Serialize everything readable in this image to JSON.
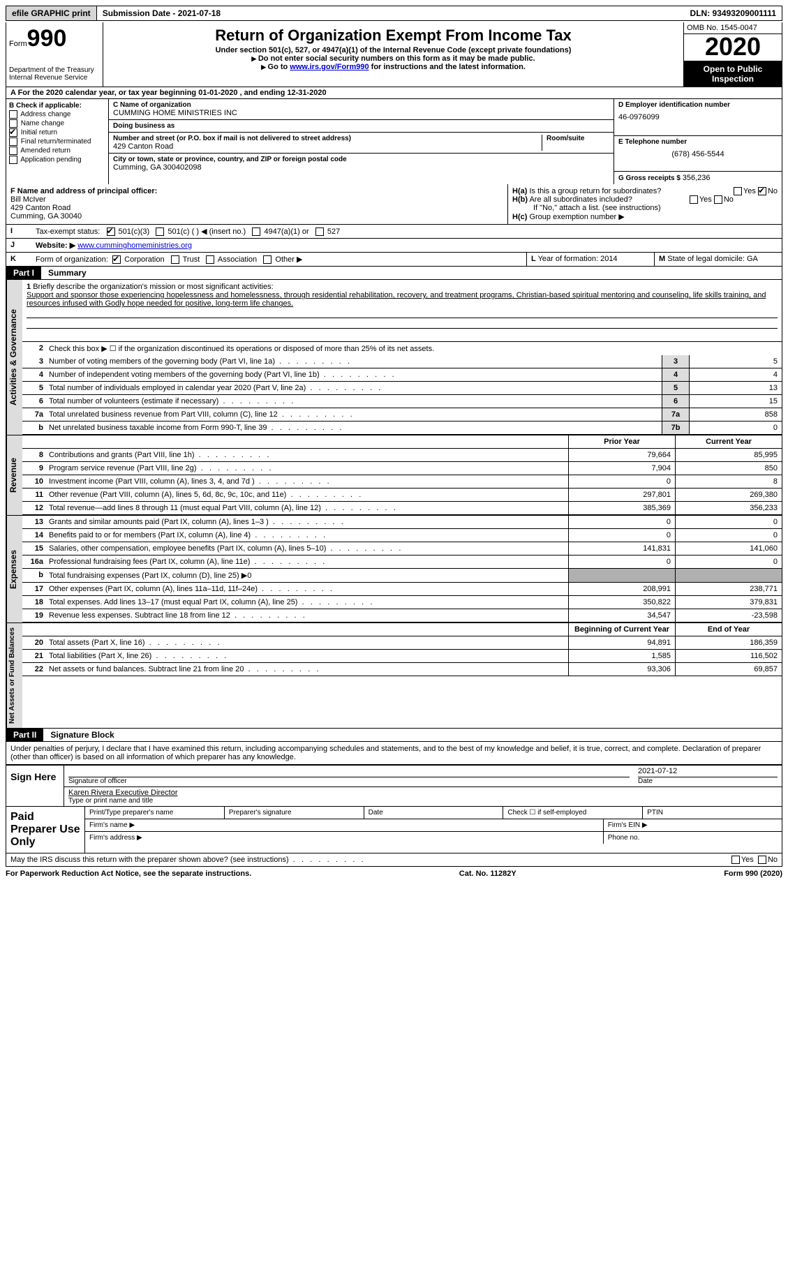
{
  "topbar": {
    "efile_btn": "efile GRAPHIC print",
    "submission_date_label": "Submission Date - ",
    "submission_date": "2021-07-18",
    "dln_label": "DLN: ",
    "dln": "93493209001111"
  },
  "header": {
    "form_label": "Form",
    "form_num": "990",
    "dept": "Department of the Treasury\nInternal Revenue Service",
    "title": "Return of Organization Exempt From Income Tax",
    "sub1": "Under section 501(c), 527, or 4947(a)(1) of the Internal Revenue Code (except private foundations)",
    "sub2": "Do not enter social security numbers on this form as it may be made public.",
    "sub3_pre": "Go to ",
    "sub3_link": "www.irs.gov/Form990",
    "sub3_post": " for instructions and the latest information.",
    "omb": "OMB No. 1545-0047",
    "year": "2020",
    "inspection": "Open to Public Inspection"
  },
  "row_a": {
    "text_pre": "A For the 2020 calendar year, or tax year beginning ",
    "begin": "01-01-2020",
    "mid": "  , and ending ",
    "end": "12-31-2020"
  },
  "col_b": {
    "header": "B Check if applicable:",
    "items": [
      {
        "label": "Address change",
        "checked": false
      },
      {
        "label": "Name change",
        "checked": false
      },
      {
        "label": "Initial return",
        "checked": true
      },
      {
        "label": "Final return/terminated",
        "checked": false
      },
      {
        "label": "Amended return",
        "checked": false
      },
      {
        "label": "Application pending",
        "checked": false
      }
    ]
  },
  "col_c": {
    "name_label": "C Name of organization",
    "name": "CUMMING HOME MINISTRIES INC",
    "dba_label": "Doing business as",
    "dba": "",
    "street_label": "Number and street (or P.O. box if mail is not delivered to street address)",
    "room_label": "Room/suite",
    "street": "429 Canton Road",
    "city_label": "City or town, state or province, country, and ZIP or foreign postal code",
    "city": "Cumming, GA  300402098"
  },
  "col_d": {
    "ein_label": "D Employer identification number",
    "ein": "46-0976099",
    "phone_label": "E Telephone number",
    "phone": "(678) 456-5544",
    "gross_label": "G Gross receipts $ ",
    "gross": "356,236"
  },
  "row_f": {
    "label": "F Name and address of principal officer:",
    "name": "Bill McIver",
    "addr1": "429 Canton Road",
    "addr2": "Cumming, GA  30040"
  },
  "row_h": {
    "ha_label": "H(a)",
    "ha_text": "Is this a group return for subordinates?",
    "ha_yes": "Yes",
    "ha_no": "No",
    "ha_checked": "No",
    "hb_label": "H(b)",
    "hb_text": "Are all subordinates included?",
    "hb_yes": "Yes",
    "hb_no": "No",
    "hb_note": "If \"No,\" attach a list. (see instructions)",
    "hc_label": "H(c)",
    "hc_text": "Group exemption number ▶"
  },
  "row_i": {
    "label": "I",
    "text": "Tax-exempt status:",
    "opts": [
      "501(c)(3)",
      "501(c) ( ) ◀ (insert no.)",
      "4947(a)(1) or",
      "527"
    ],
    "checked_idx": 0
  },
  "row_j": {
    "label": "J",
    "text": "Website: ▶",
    "url": "www.cumminghomeministries.org"
  },
  "row_k": {
    "label": "K",
    "text": "Form of organization:",
    "opts": [
      "Corporation",
      "Trust",
      "Association",
      "Other ▶"
    ],
    "checked_idx": 0
  },
  "row_l": {
    "label": "L",
    "text": "Year of formation: ",
    "val": "2014"
  },
  "row_m": {
    "label": "M",
    "text": "State of legal domicile: ",
    "val": "GA"
  },
  "part1": {
    "badge": "Part I",
    "title": "Summary"
  },
  "mission": {
    "num": "1",
    "label": "Briefly describe the organization's mission or most significant activities:",
    "text": "Support and sponsor those experiencing hopelessness and homelessness, through residential rehabilitation, recovery, and treatment programs, Christian-based spiritual mentoring and counseling, life skills training, and resources infused with Godly hope needed for positive, long-term life changes."
  },
  "line2": {
    "num": "2",
    "text": "Check this box ▶ ☐ if the organization discontinued its operations or disposed of more than 25% of its net assets."
  },
  "governance_lines": [
    {
      "num": "3",
      "desc": "Number of voting members of the governing body (Part VI, line 1a)",
      "box": "3",
      "val": "5"
    },
    {
      "num": "4",
      "desc": "Number of independent voting members of the governing body (Part VI, line 1b)",
      "box": "4",
      "val": "4"
    },
    {
      "num": "5",
      "desc": "Total number of individuals employed in calendar year 2020 (Part V, line 2a)",
      "box": "5",
      "val": "13"
    },
    {
      "num": "6",
      "desc": "Total number of volunteers (estimate if necessary)",
      "box": "6",
      "val": "15"
    },
    {
      "num": "7a",
      "desc": "Total unrelated business revenue from Part VIII, column (C), line 12",
      "box": "7a",
      "val": "858"
    },
    {
      "num": "b",
      "desc": "Net unrelated business taxable income from Form 990-T, line 39",
      "box": "7b",
      "val": "0"
    }
  ],
  "side_labels": {
    "gov": "Activities & Governance",
    "rev": "Revenue",
    "exp": "Expenses",
    "net": "Net Assets or Fund Balances"
  },
  "two_col_header": {
    "prior": "Prior Year",
    "curr": "Current Year"
  },
  "revenue_lines": [
    {
      "num": "8",
      "desc": "Contributions and grants (Part VIII, line 1h)",
      "prior": "79,664",
      "curr": "85,995"
    },
    {
      "num": "9",
      "desc": "Program service revenue (Part VIII, line 2g)",
      "prior": "7,904",
      "curr": "850"
    },
    {
      "num": "10",
      "desc": "Investment income (Part VIII, column (A), lines 3, 4, and 7d )",
      "prior": "0",
      "curr": "8"
    },
    {
      "num": "11",
      "desc": "Other revenue (Part VIII, column (A), lines 5, 6d, 8c, 9c, 10c, and 11e)",
      "prior": "297,801",
      "curr": "269,380"
    },
    {
      "num": "12",
      "desc": "Total revenue—add lines 8 through 11 (must equal Part VIII, column (A), line 12)",
      "prior": "385,369",
      "curr": "356,233"
    }
  ],
  "expense_lines": [
    {
      "num": "13",
      "desc": "Grants and similar amounts paid (Part IX, column (A), lines 1–3 )",
      "prior": "0",
      "curr": "0"
    },
    {
      "num": "14",
      "desc": "Benefits paid to or for members (Part IX, column (A), line 4)",
      "prior": "0",
      "curr": "0"
    },
    {
      "num": "15",
      "desc": "Salaries, other compensation, employee benefits (Part IX, column (A), lines 5–10)",
      "prior": "141,831",
      "curr": "141,060"
    },
    {
      "num": "16a",
      "desc": "Professional fundraising fees (Part IX, column (A), line 11e)",
      "prior": "0",
      "curr": "0"
    },
    {
      "num": "b",
      "desc": "Total fundraising expenses (Part IX, column (D), line 25) ▶0",
      "prior": "",
      "curr": "",
      "grey": true
    },
    {
      "num": "17",
      "desc": "Other expenses (Part IX, column (A), lines 11a–11d, 11f–24e)",
      "prior": "208,991",
      "curr": "238,771"
    },
    {
      "num": "18",
      "desc": "Total expenses. Add lines 13–17 (must equal Part IX, column (A), line 25)",
      "prior": "350,822",
      "curr": "379,831"
    },
    {
      "num": "19",
      "desc": "Revenue less expenses. Subtract line 18 from line 12",
      "prior": "34,547",
      "curr": "-23,598"
    }
  ],
  "net_header": {
    "prior": "Beginning of Current Year",
    "curr": "End of Year"
  },
  "net_lines": [
    {
      "num": "20",
      "desc": "Total assets (Part X, line 16)",
      "prior": "94,891",
      "curr": "186,359"
    },
    {
      "num": "21",
      "desc": "Total liabilities (Part X, line 26)",
      "prior": "1,585",
      "curr": "116,502"
    },
    {
      "num": "22",
      "desc": "Net assets or fund balances. Subtract line 21 from line 20",
      "prior": "93,306",
      "curr": "69,857"
    }
  ],
  "part2": {
    "badge": "Part II",
    "title": "Signature Block"
  },
  "sig": {
    "declaration": "Under penalties of perjury, I declare that I have examined this return, including accompanying schedules and statements, and to the best of my knowledge and belief, it is true, correct, and complete. Declaration of preparer (other than officer) is based on all information of which preparer has any knowledge.",
    "sign_here": "Sign Here",
    "sig_officer": "Signature of officer",
    "date_label": "Date",
    "date": "2021-07-12",
    "name_title": "Karen Rivera  Executive Director",
    "name_title_label": "Type or print name and title"
  },
  "prep": {
    "header": "Paid Preparer Use Only",
    "cols": [
      "Print/Type preparer's name",
      "Preparer's signature",
      "Date",
      "Check ☐ if self-employed",
      "PTIN"
    ],
    "firm_name": "Firm's name  ▶",
    "firm_ein": "Firm's EIN ▶",
    "firm_addr": "Firm's address ▶",
    "phone": "Phone no."
  },
  "discuss": {
    "text": "May the IRS discuss this return with the preparer shown above? (see instructions)",
    "yes": "Yes",
    "no": "No"
  },
  "footer": {
    "left": "For Paperwork Reduction Act Notice, see the separate instructions.",
    "mid": "Cat. No. 11282Y",
    "right_pre": "Form ",
    "right_bold": "990",
    "right_post": " (2020)"
  },
  "colors": {
    "black": "#000000",
    "grey_btn": "#d6d6d6",
    "grey_side": "#dddddd",
    "grey_cell": "#b0b0b0",
    "link": "#0000cc"
  }
}
